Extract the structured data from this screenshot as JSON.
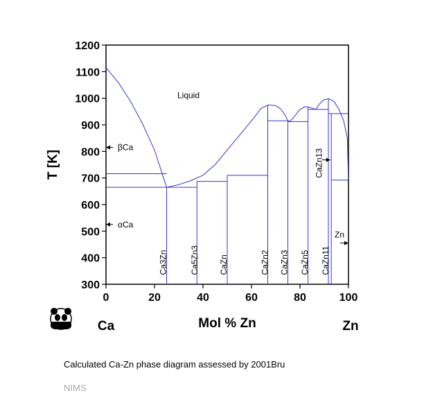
{
  "chart_data": {
    "type": "line",
    "title": "",
    "xlabel": "Mol % Zn",
    "ylabel": "T [K]",
    "x_left_label": "Ca",
    "x_right_label": "Zn",
    "xlim": [
      0,
      100
    ],
    "ylim": [
      300,
      1200
    ],
    "x_ticks": [
      0,
      20,
      40,
      60,
      80,
      100
    ],
    "y_ticks": [
      300,
      400,
      500,
      600,
      700,
      800,
      900,
      1000,
      1100,
      1200
    ],
    "line_color": "#3333cc",
    "grid": false,
    "liquidus": [
      {
        "x": 0,
        "y": 1115
      },
      {
        "x": 5,
        "y": 1060
      },
      {
        "x": 10,
        "y": 990
      },
      {
        "x": 15,
        "y": 905
      },
      {
        "x": 20,
        "y": 805
      },
      {
        "x": 25,
        "y": 665
      },
      {
        "x": 30,
        "y": 675
      },
      {
        "x": 35,
        "y": 690
      },
      {
        "x": 40,
        "y": 710
      },
      {
        "x": 45,
        "y": 750
      },
      {
        "x": 50,
        "y": 805
      },
      {
        "x": 55,
        "y": 860
      },
      {
        "x": 60,
        "y": 915
      },
      {
        "x": 64,
        "y": 962
      },
      {
        "x": 67,
        "y": 975
      },
      {
        "x": 70,
        "y": 972
      },
      {
        "x": 72,
        "y": 960
      },
      {
        "x": 74,
        "y": 935
      },
      {
        "x": 75,
        "y": 915
      },
      {
        "x": 76,
        "y": 914
      },
      {
        "x": 78,
        "y": 935
      },
      {
        "x": 80,
        "y": 958
      },
      {
        "x": 82,
        "y": 968
      },
      {
        "x": 83.5,
        "y": 967
      },
      {
        "x": 85,
        "y": 962
      },
      {
        "x": 86.5,
        "y": 958
      },
      {
        "x": 88,
        "y": 978
      },
      {
        "x": 90,
        "y": 995
      },
      {
        "x": 92,
        "y": 998
      },
      {
        "x": 94,
        "y": 988
      },
      {
        "x": 96,
        "y": 960
      },
      {
        "x": 98,
        "y": 915
      },
      {
        "x": 99.5,
        "y": 850
      },
      {
        "x": 100,
        "y": 693
      }
    ],
    "isotherms": [
      {
        "x1": 0,
        "x2": 25,
        "y": 716
      },
      {
        "x1": 0,
        "x2": 25,
        "y": 665
      },
      {
        "x1": 25,
        "x2": 37.5,
        "y": 665
      },
      {
        "x1": 37.5,
        "x2": 50,
        "y": 687
      },
      {
        "x1": 50,
        "x2": 66.7,
        "y": 710
      },
      {
        "x1": 66.7,
        "x2": 75,
        "y": 915
      },
      {
        "x1": 75,
        "x2": 83.3,
        "y": 912
      },
      {
        "x1": 83.3,
        "x2": 91.7,
        "y": 958
      },
      {
        "x1": 91.7,
        "x2": 92.9,
        "y": 942
      },
      {
        "x1": 92.9,
        "x2": 100,
        "y": 942
      },
      {
        "x1": 92.9,
        "x2": 100,
        "y": 692
      }
    ],
    "compound_lines": [
      {
        "x": 25,
        "y_top": 665
      },
      {
        "x": 37.5,
        "y_top": 687
      },
      {
        "x": 50,
        "y_top": 710
      },
      {
        "x": 66.7,
        "y_top": 975
      },
      {
        "x": 75,
        "y_top": 915
      },
      {
        "x": 83.3,
        "y_top": 967
      },
      {
        "x": 91.7,
        "y_top": 998
      },
      {
        "x": 92.9,
        "y_top": 942
      }
    ],
    "phase_labels": [
      {
        "text": "Liquid",
        "x": 34,
        "y": 1000,
        "rotate": false
      },
      {
        "text": "Ca3Zn",
        "x": 23.5,
        "y": 335,
        "rotate": true
      },
      {
        "text": "Ca5Zn3",
        "x": 36.5,
        "y": 335,
        "rotate": true
      },
      {
        "text": "CaZn",
        "x": 48.5,
        "y": 335,
        "rotate": true
      },
      {
        "text": "CaZn2",
        "x": 65.5,
        "y": 335,
        "rotate": true
      },
      {
        "text": "CaZn3",
        "x": 73.5,
        "y": 335,
        "rotate": true
      },
      {
        "text": "CaZn5",
        "x": 82,
        "y": 335,
        "rotate": true
      },
      {
        "text": "CaZn11",
        "x": 90.5,
        "y": 335,
        "rotate": true
      },
      {
        "text": "CaZn13",
        "x": 87.8,
        "y": 700,
        "rotate": true
      }
    ],
    "arrow_labels": [
      {
        "text": "βCa",
        "x": 0,
        "y": 815,
        "dir": "left-out",
        "label_dx": 5
      },
      {
        "text": "αCa",
        "x": 0,
        "y": 525,
        "dir": "left-out",
        "label_dx": 5
      },
      {
        "text": "CaZn13",
        "x": 92.5,
        "y": 768,
        "dir": "right-in",
        "label_dx": 0
      },
      {
        "text": "Zn",
        "x": 100,
        "y": 455,
        "dir": "right-in",
        "label_dx": 0
      }
    ]
  },
  "caption": "Calculated Ca-Zn phase diagram assessed by 2001Bru",
  "credit": "NIMS",
  "logo": {
    "icon": "panda-icon"
  }
}
